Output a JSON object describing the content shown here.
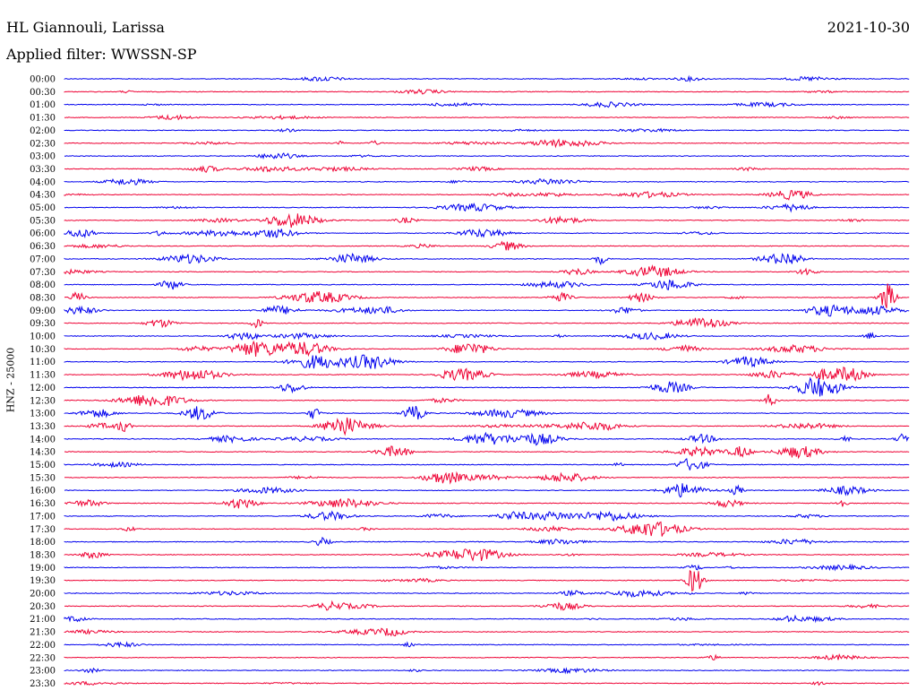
{
  "header": {
    "station": "HL Giannouli, Larissa",
    "date": "2021-10-30",
    "filter": "Applied filter: WWSSN-SP"
  },
  "chart_data": {
    "type": "line",
    "title": "HL Giannouli, Larissa",
    "ylabel": "HNZ - 25000",
    "rows": [
      "00:00",
      "00:30",
      "01:00",
      "01:30",
      "02:00",
      "02:30",
      "03:00",
      "03:30",
      "04:00",
      "04:30",
      "05:00",
      "05:30",
      "06:00",
      "06:30",
      "07:00",
      "07:30",
      "08:00",
      "08:30",
      "09:00",
      "09:30",
      "10:00",
      "10:30",
      "11:00",
      "11:30",
      "12:00",
      "12:30",
      "13:00",
      "13:30",
      "14:00",
      "14:30",
      "15:00",
      "15:30",
      "16:00",
      "16:30",
      "17:00",
      "17:30",
      "18:00",
      "18:30",
      "19:00",
      "19:30",
      "20:00",
      "20:30",
      "21:00",
      "21:30",
      "22:00",
      "22:30",
      "23:00",
      "23:30"
    ],
    "colors": [
      "#0000ee",
      "#ee0033"
    ]
  }
}
